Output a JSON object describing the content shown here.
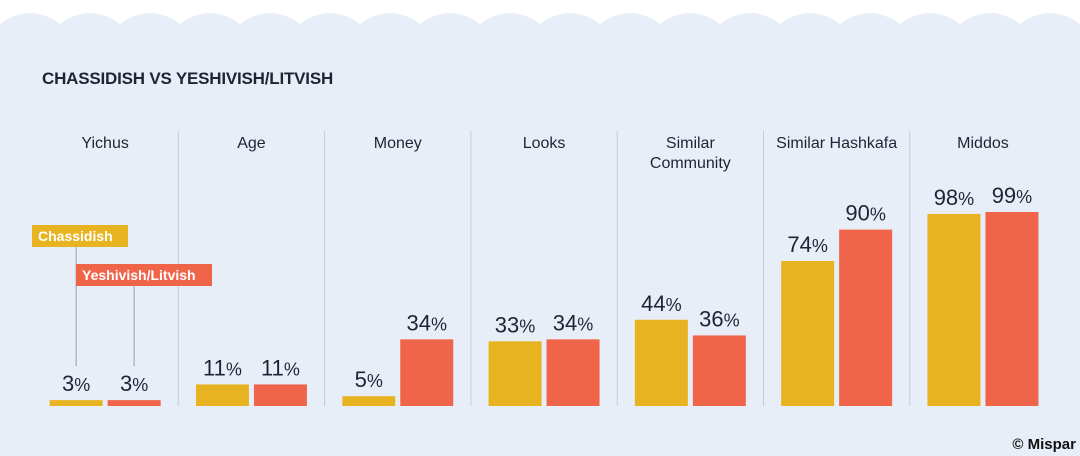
{
  "chart_data": {
    "type": "bar",
    "title": "CHASSIDISH VS YESHIVISH/LITVISH",
    "categories": [
      "Yichus",
      "Age",
      "Money",
      "Looks",
      "Similar\nCommunity",
      "Similar Hashkafa",
      "Middos"
    ],
    "series": [
      {
        "name": "Chassidish",
        "values": [
          3,
          11,
          5,
          33,
          44,
          74,
          98
        ]
      },
      {
        "name": "Yeshivish/Litvish",
        "values": [
          3,
          11,
          34,
          34,
          36,
          90,
          99
        ]
      }
    ],
    "unit": "%",
    "ylim": [
      0,
      100
    ],
    "grid": false,
    "legend": "left"
  },
  "colors": {
    "background": "#e8eef8",
    "chassidish": "#e8b321",
    "litvish": "#f0654a",
    "divider": "#c3cbd8",
    "text": "#1f2433"
  },
  "credit": "© Mispar"
}
